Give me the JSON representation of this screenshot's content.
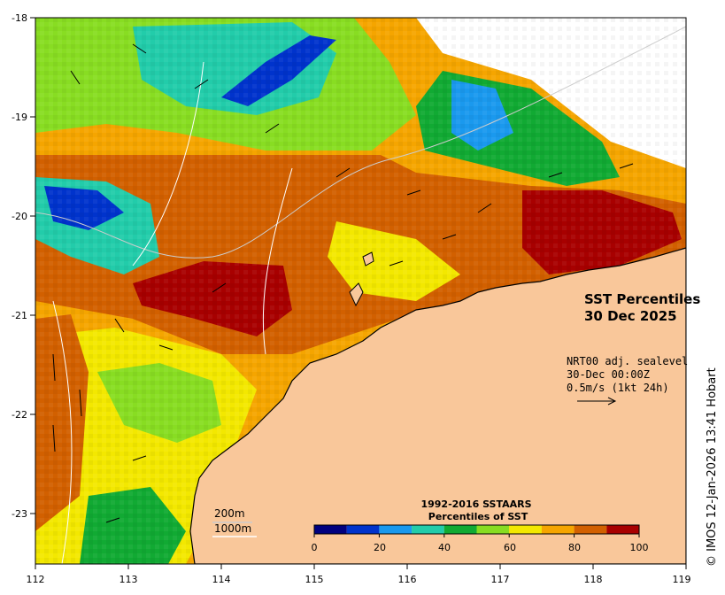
{
  "map": {
    "title_line1": "SST Percentiles",
    "title_line2": "30 Dec 2025",
    "lon_range": [
      112,
      119
    ],
    "lat_range": [
      -23.5,
      -18
    ],
    "lon_ticks": [
      "112",
      "113",
      "114",
      "115",
      "116",
      "117",
      "118",
      "119"
    ],
    "lat_ticks": [
      "-18",
      "-19",
      "-20",
      "-21",
      "-22",
      "-23"
    ],
    "land_color": "#f9c79a"
  },
  "currents": {
    "line1": "NRT00 adj. sealevel",
    "line2": "30-Dec 00:00Z",
    "line3": "0.5m/s (1kt 24h)"
  },
  "contours": {
    "label_200": "200m",
    "label_1000": "1000m"
  },
  "legend": {
    "title_line1": "1992-2016 SSTAARS",
    "title_line2": "Percentiles of SST",
    "tick_labels": [
      "0",
      "20",
      "40",
      "60",
      "80",
      "100"
    ],
    "colors": [
      "#00007f",
      "#0033cc",
      "#1a99ee",
      "#22ccaa",
      "#11aa33",
      "#88dd22",
      "#f3e800",
      "#f5a500",
      "#d26000",
      "#a80000"
    ]
  },
  "credit": "© IMOS 12-Jan-2026 13:41 Hobart"
}
